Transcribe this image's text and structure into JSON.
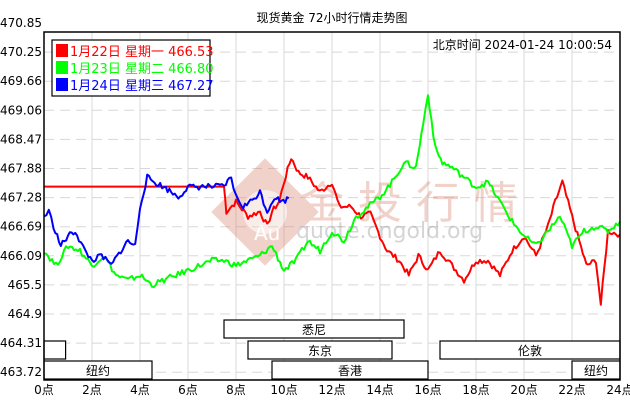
{
  "chart_data": {
    "type": "line",
    "title": "现货黄金 72小时行情走势图",
    "timestamp_label": "北京时间",
    "timestamp": "2024-01-24 10:00:54",
    "watermark": {
      "text": "金投行情",
      "url_text": "quote.cngold.org",
      "logo_text": "Au"
    },
    "xlabel": "",
    "ylabel": "",
    "x_ticks": [
      "0点",
      "2点",
      "4点",
      "6点",
      "8点",
      "10点",
      "12点",
      "14点",
      "16点",
      "18点",
      "20点",
      "22点",
      "24点"
    ],
    "y_ticks": [
      "470.85",
      "470.25",
      "469.66",
      "469.06",
      "468.47",
      "467.88",
      "467.28",
      "466.69",
      "466.09",
      "465.5",
      "464.9",
      "464.31",
      "463.72"
    ],
    "ylim": [
      463.72,
      470.85
    ],
    "xlim": [
      0,
      24
    ],
    "grid": true,
    "legend_position": "top-left",
    "series": [
      {
        "name": "1月22日 星期一",
        "last": "466.53",
        "color": "#ff0000",
        "x": [
          0,
          7.5,
          7.6,
          8.0,
          8.5,
          9.0,
          9.3,
          9.5,
          9.8,
          10.0,
          10.3,
          10.6,
          11.0,
          11.5,
          12.0,
          12.3,
          12.8,
          13.2,
          13.6,
          14.0,
          14.3,
          14.8,
          15.2,
          15.6,
          16.0,
          16.5,
          17.0,
          17.5,
          18.0,
          18.5,
          19.0,
          19.5,
          20.0,
          20.5,
          21.0,
          21.3,
          21.6,
          22.0,
          22.3,
          22.6,
          23.0,
          23.2,
          23.5,
          24.0
        ],
        "values": [
          467.51,
          467.51,
          467.0,
          467.2,
          466.9,
          467.0,
          466.7,
          467.0,
          467.2,
          467.6,
          468.1,
          467.8,
          467.7,
          467.4,
          467.6,
          467.1,
          467.1,
          466.9,
          466.95,
          466.5,
          466.2,
          466.0,
          465.7,
          466.1,
          465.8,
          466.2,
          465.9,
          465.6,
          466.0,
          466.0,
          465.7,
          466.2,
          466.5,
          466.1,
          466.7,
          467.2,
          467.6,
          466.9,
          466.4,
          465.9,
          466.0,
          465.1,
          466.6,
          466.53
        ]
      },
      {
        "name": "1月23日 星期二",
        "last": "466.80",
        "color": "#00ff00",
        "x": [
          0,
          0.5,
          1.0,
          1.5,
          2.0,
          2.5,
          3.0,
          3.5,
          4.0,
          4.5,
          5.0,
          5.5,
          6.0,
          6.5,
          7.0,
          7.5,
          8.0,
          8.5,
          9.0,
          9.5,
          10.0,
          10.5,
          11.0,
          11.5,
          12.0,
          12.5,
          13.0,
          13.5,
          14.0,
          14.5,
          15.0,
          15.5,
          15.8,
          16.0,
          16.3,
          16.6,
          17.0,
          17.5,
          18.0,
          18.5,
          19.0,
          19.5,
          20.0,
          20.5,
          21.0,
          21.5,
          22.0,
          22.5,
          23.0,
          23.5,
          24.0
        ],
        "values": [
          466.2,
          465.9,
          466.3,
          466.2,
          465.9,
          466.1,
          465.7,
          465.6,
          465.7,
          465.5,
          465.6,
          465.7,
          465.8,
          465.9,
          466.0,
          466.0,
          465.9,
          466.0,
          466.1,
          466.3,
          465.8,
          466.0,
          466.4,
          466.2,
          466.6,
          466.4,
          466.9,
          467.1,
          467.3,
          467.6,
          468.0,
          467.9,
          468.8,
          469.4,
          468.3,
          468.0,
          467.9,
          467.7,
          467.5,
          467.6,
          467.2,
          466.8,
          466.5,
          466.3,
          466.6,
          466.9,
          466.3,
          466.6,
          466.7,
          466.6,
          466.8
        ]
      },
      {
        "name": "1月24日 星期三",
        "last": "467.27",
        "color": "#0000ff",
        "x": [
          0,
          0.2,
          0.4,
          0.7,
          1.0,
          1.3,
          1.7,
          2.0,
          2.4,
          2.8,
          3.2,
          3.5,
          3.8,
          4.0,
          4.3,
          4.6,
          5.0,
          5.3,
          5.6,
          6.0,
          6.3,
          6.6,
          7.0,
          7.5,
          7.8,
          8.0,
          8.3,
          8.6,
          9.0,
          9.3,
          9.6,
          9.9,
          10.2
        ],
        "values": [
          466.9,
          467.0,
          466.7,
          466.3,
          466.5,
          466.6,
          466.2,
          466.0,
          466.1,
          465.9,
          466.2,
          466.4,
          466.3,
          467.1,
          467.7,
          467.6,
          467.5,
          467.4,
          467.3,
          467.5,
          467.5,
          467.51,
          467.51,
          467.51,
          467.7,
          467.3,
          467.1,
          467.2,
          467.4,
          467.0,
          467.3,
          467.2,
          467.27
        ]
      }
    ],
    "markets": [
      {
        "name": "悉尼",
        "start": 7.5,
        "end": 15.0,
        "row": 0
      },
      {
        "name": "",
        "start": 0.0,
        "end": 0.9,
        "row": 1
      },
      {
        "name": "东京",
        "start": 8.5,
        "end": 14.5,
        "row": 1
      },
      {
        "name": "伦敦",
        "start": 16.5,
        "end": 24.0,
        "row": 1
      },
      {
        "name": "纽约",
        "start": 0.0,
        "end": 4.5,
        "row": 2
      },
      {
        "name": "香港",
        "start": 9.5,
        "end": 16.0,
        "row": 2
      },
      {
        "name": "纽约",
        "start": 22.0,
        "end": 24.0,
        "row": 2
      }
    ]
  }
}
